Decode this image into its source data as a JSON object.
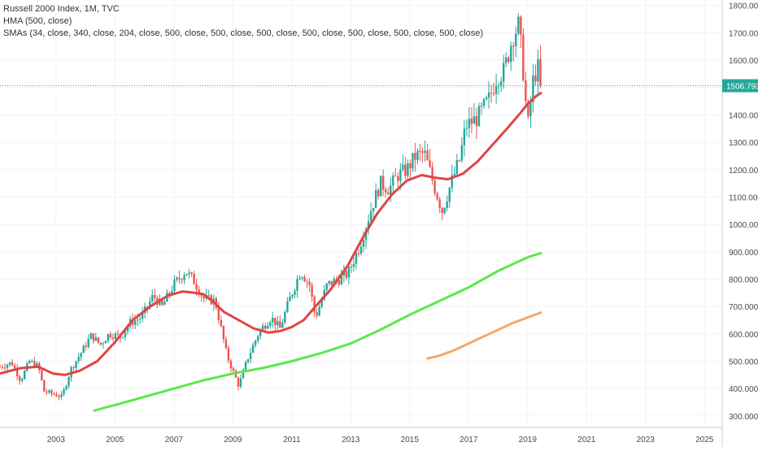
{
  "legend": {
    "symbol_line": "Russell 2000 Index, 1M, TVC",
    "hma_line": "HMA (500, close)",
    "sma_line": "SMAs (34, close, 340, close, 204, close, 500, close, 500, close, 500, close, 500, close, 500, close, 500, close, 500, close)"
  },
  "chart_data": {
    "type": "candlestick",
    "title": "Russell 2000 Index, 1M, TVC",
    "ylim": [
      270,
      1820
    ],
    "xlim": [
      2001.1,
      2025.6
    ],
    "grid": true,
    "price_scale": "right",
    "y_ticks": [
      "300.000",
      "400.000",
      "500.000",
      "600.000",
      "700.000",
      "800.000",
      "900.000",
      "1000.000",
      "1100.000",
      "1200.000",
      "1300.000",
      "1400.000",
      "1500.000",
      "1600.000",
      "1700.000",
      "1800.000"
    ],
    "x_ticks": [
      "2003",
      "2005",
      "2007",
      "2009",
      "2011",
      "2013",
      "2015",
      "2017",
      "2019",
      "2021",
      "2023",
      "2025"
    ],
    "last_price": 1506.793,
    "last_price_label": "1506.793",
    "colors": {
      "up": "#26a69a",
      "down": "#ef5350",
      "hma": "#e04545",
      "sma_green": "#5be84a",
      "sma_orange": "#f4a86a",
      "price_line": "#26a69a"
    },
    "ohlc_anchors": [
      [
        2001.1,
        480
      ],
      [
        2001.5,
        495
      ],
      [
        2001.8,
        430
      ],
      [
        2002.1,
        500
      ],
      [
        2002.4,
        480
      ],
      [
        2002.6,
        390
      ],
      [
        2002.9,
        380
      ],
      [
        2003.2,
        370
      ],
      [
        2003.5,
        470
      ],
      [
        2003.9,
        540
      ],
      [
        2004.2,
        595
      ],
      [
        2004.5,
        560
      ],
      [
        2004.8,
        600
      ],
      [
        2005.2,
        590
      ],
      [
        2005.5,
        640
      ],
      [
        2005.9,
        660
      ],
      [
        2006.3,
        740
      ],
      [
        2006.6,
        700
      ],
      [
        2007.0,
        780
      ],
      [
        2007.4,
        830
      ],
      [
        2007.7,
        790
      ],
      [
        2008.0,
        730
      ],
      [
        2008.4,
        720
      ],
      [
        2008.8,
        520
      ],
      [
        2009.2,
        410
      ],
      [
        2009.5,
        510
      ],
      [
        2009.9,
        610
      ],
      [
        2010.3,
        660
      ],
      [
        2010.6,
        620
      ],
      [
        2010.9,
        720
      ],
      [
        2011.3,
        830
      ],
      [
        2011.6,
        780
      ],
      [
        2011.8,
        660
      ],
      [
        2012.2,
        780
      ],
      [
        2012.6,
        800
      ],
      [
        2012.9,
        820
      ],
      [
        2013.3,
        920
      ],
      [
        2013.7,
        1060
      ],
      [
        2014.0,
        1150
      ],
      [
        2014.3,
        1130
      ],
      [
        2014.6,
        1180
      ],
      [
        2014.9,
        1200
      ],
      [
        2015.2,
        1250
      ],
      [
        2015.5,
        1260
      ],
      [
        2015.8,
        1150
      ],
      [
        2016.1,
        1050
      ],
      [
        2016.4,
        1150
      ],
      [
        2016.7,
        1240
      ],
      [
        2016.9,
        1360
      ],
      [
        2017.3,
        1390
      ],
      [
        2017.7,
        1460
      ],
      [
        2017.95,
        1540
      ],
      [
        2018.2,
        1560
      ],
      [
        2018.5,
        1690
      ],
      [
        2018.7,
        1730
      ],
      [
        2018.85,
        1560
      ],
      [
        2019.0,
        1350
      ],
      [
        2019.2,
        1540
      ],
      [
        2019.35,
        1570
      ],
      [
        2019.45,
        1507
      ]
    ],
    "series": [
      {
        "name": "HMA (500, close)",
        "color": "#e04545",
        "x": [
          2001.1,
          2001.8,
          2002.4,
          2002.9,
          2003.3,
          2003.8,
          2004.4,
          2005.0,
          2005.6,
          2006.2,
          2006.8,
          2007.3,
          2007.7,
          2008.0,
          2008.3,
          2008.7,
          2009.2,
          2009.7,
          2010.2,
          2010.6,
          2011.0,
          2011.4,
          2011.8,
          2012.3,
          2012.9,
          2013.4,
          2013.9,
          2014.4,
          2014.9,
          2015.4,
          2015.9,
          2016.3,
          2016.8,
          2017.3,
          2017.8,
          2018.3,
          2018.7,
          2019.0,
          2019.3,
          2019.45
        ],
        "values": [
          455,
          475,
          480,
          455,
          450,
          465,
          500,
          570,
          650,
          700,
          740,
          755,
          750,
          745,
          720,
          680,
          650,
          620,
          605,
          610,
          625,
          650,
          700,
          760,
          850,
          950,
          1040,
          1110,
          1160,
          1180,
          1170,
          1165,
          1185,
          1230,
          1290,
          1350,
          1400,
          1440,
          1470,
          1480
        ]
      },
      {
        "name": "SMA",
        "color": "#5be84a",
        "x": [
          2004.3,
          2005.0,
          2006.0,
          2007.0,
          2008.0,
          2009.0,
          2010.0,
          2011.0,
          2012.0,
          2013.0,
          2014.0,
          2015.0,
          2016.0,
          2017.0,
          2018.0,
          2019.0,
          2019.45
        ],
        "values": [
          320,
          340,
          370,
          400,
          430,
          455,
          475,
          500,
          530,
          565,
          615,
          670,
          720,
          770,
          830,
          880,
          895
        ]
      },
      {
        "name": "SMA",
        "color": "#f4a86a",
        "x": [
          2015.6,
          2016.0,
          2016.5,
          2017.0,
          2017.5,
          2018.0,
          2018.5,
          2019.0,
          2019.45
        ],
        "values": [
          510,
          520,
          540,
          565,
          590,
          615,
          640,
          660,
          678
        ]
      }
    ]
  }
}
